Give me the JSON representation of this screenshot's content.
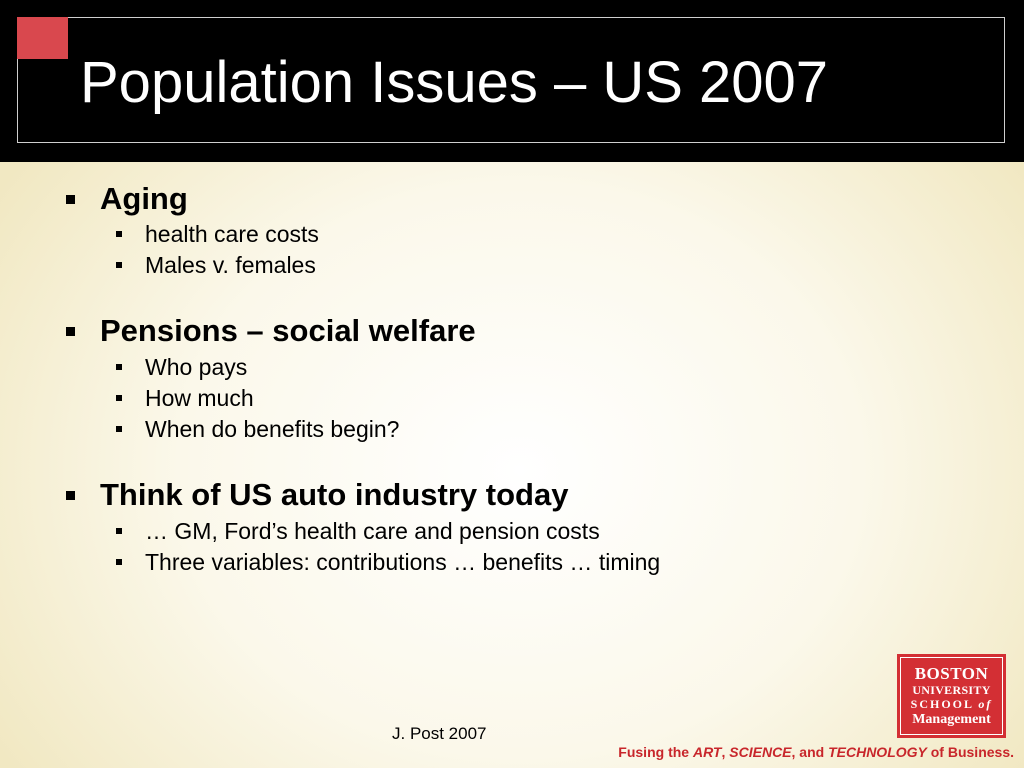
{
  "slide": {
    "title": "Population Issues – US 2007",
    "sections": [
      {
        "heading": "Aging",
        "items": [
          "health care costs",
          "Males v. females"
        ]
      },
      {
        "heading": "Pensions – social welfare",
        "items": [
          "Who pays",
          "How much",
          "When do benefits begin?"
        ]
      },
      {
        "heading": "Think of US auto industry today",
        "items": [
          "… GM, Ford’s health care and pension costs",
          "Three variables: contributions … benefits … timing"
        ]
      }
    ],
    "author": "J. Post 2007"
  },
  "logo": {
    "line1": "BOSTON",
    "line2": "UNIVERSITY",
    "line3_a": "SCHOOL",
    "line3_b": "of",
    "line4": "Management"
  },
  "tagline": {
    "p1": "Fusing the ",
    "art": "ART",
    "p2": ", ",
    "science": "SCIENCE",
    "p3": ", and ",
    "technology": "TECHNOLOGY",
    "p4": " of Business."
  },
  "colors": {
    "header": "#000000",
    "accent_red": "#d9484e",
    "logo_red": "#d32f34",
    "tagline_red": "#c8262b"
  }
}
